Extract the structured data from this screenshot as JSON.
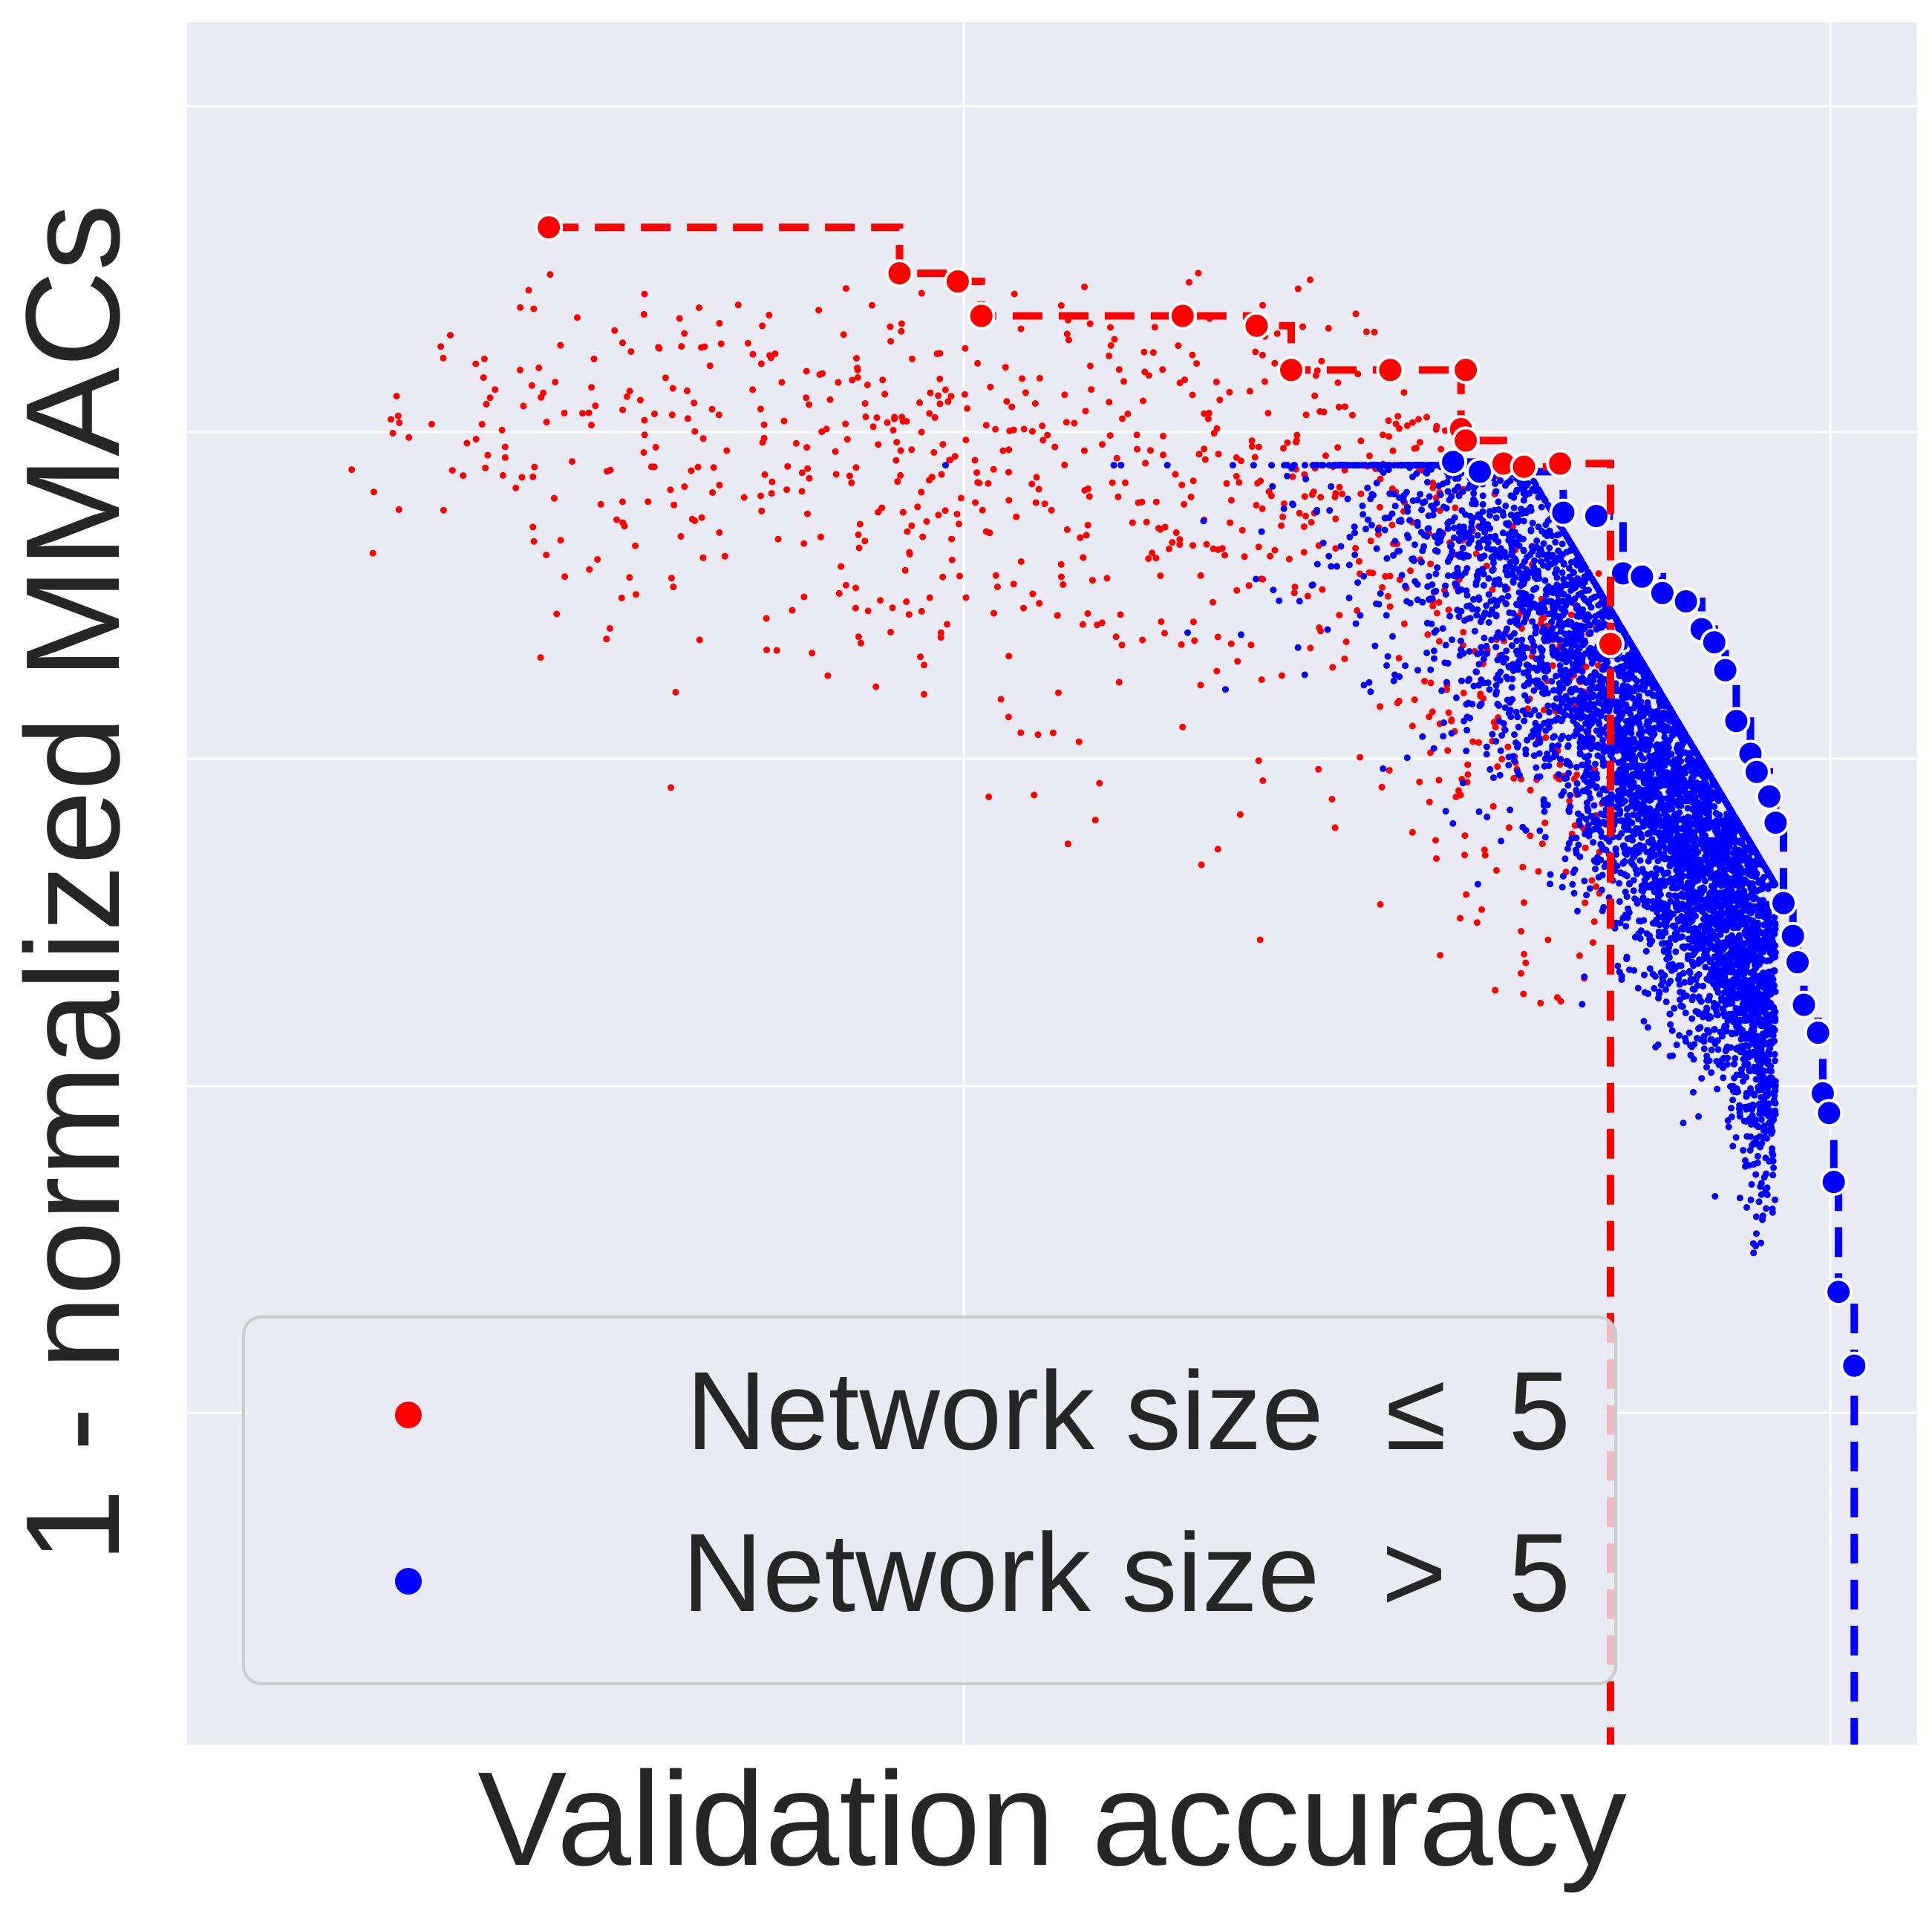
{
  "chart_data": {
    "type": "scatter",
    "xlabel": "Validation accuracy",
    "ylabel": "1 - normalized MMACs",
    "xlim": [
      0,
      1
    ],
    "ylim": [
      0,
      1
    ],
    "grid": true,
    "tick_labels_visible": false,
    "legend_position": "bottom-left",
    "series": [
      {
        "name": "Network size  ≤  5",
        "color": "#ff0000",
        "pareto_front": [
          [
            0.18,
            0.925
          ],
          [
            0.403,
            0.897
          ],
          [
            0.44,
            0.892
          ],
          [
            0.455,
            0.871
          ],
          [
            0.583,
            0.871
          ],
          [
            0.63,
            0.865
          ],
          [
            0.652,
            0.838
          ],
          [
            0.715,
            0.838
          ],
          [
            0.763,
            0.838
          ],
          [
            0.76,
            0.802
          ],
          [
            0.763,
            0.795
          ],
          [
            0.787,
            0.781
          ],
          [
            0.8,
            0.779
          ],
          [
            0.823,
            0.781
          ],
          [
            0.855,
            0.671
          ]
        ],
        "cloud_center": [
          0.6,
          0.76
        ],
        "cloud_count": 1200
      },
      {
        "name": "Network size  >  5",
        "color": "#0000ff",
        "pareto_front": [
          [
            0.755,
            0.782
          ],
          [
            0.772,
            0.776
          ],
          [
            0.825,
            0.751
          ],
          [
            0.846,
            0.749
          ],
          [
            0.863,
            0.714
          ],
          [
            0.875,
            0.712
          ],
          [
            0.888,
            0.702
          ],
          [
            0.903,
            0.697
          ],
          [
            0.913,
            0.68
          ],
          [
            0.921,
            0.672
          ],
          [
            0.928,
            0.655
          ],
          [
            0.935,
            0.624
          ],
          [
            0.944,
            0.604
          ],
          [
            0.948,
            0.593
          ],
          [
            0.956,
            0.578
          ],
          [
            0.96,
            0.562
          ],
          [
            0.965,
            0.513
          ],
          [
            0.971,
            0.493
          ],
          [
            0.974,
            0.477
          ],
          [
            0.978,
            0.451
          ],
          [
            0.987,
            0.434
          ],
          [
            0.99,
            0.397
          ],
          [
            0.994,
            0.385
          ],
          [
            0.997,
            0.343
          ],
          [
            1.0,
            0.276
          ],
          [
            1.01,
            0.231
          ]
        ],
        "cloud_center": [
          0.88,
          0.55
        ],
        "cloud_count": 7000
      }
    ]
  }
}
